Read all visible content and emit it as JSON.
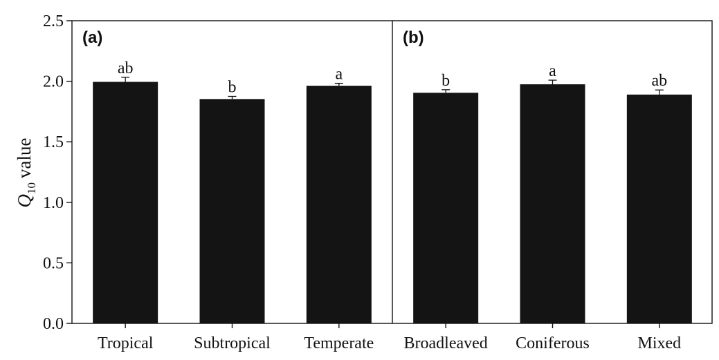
{
  "chart_data": {
    "type": "bar",
    "title": "",
    "xlabel": "",
    "ylabel": {
      "symbol": "Q",
      "subscript": "10",
      "suffix": "value"
    },
    "ylim": [
      0.0,
      2.5
    ],
    "yticks": [
      {
        "value": 0.0,
        "label": "0.0"
      },
      {
        "value": 0.5,
        "label": "0.5"
      },
      {
        "value": 1.0,
        "label": "1.0"
      },
      {
        "value": 1.5,
        "label": "1.5"
      },
      {
        "value": 2.0,
        "label": "2.0"
      },
      {
        "value": 2.5,
        "label": "2.5"
      }
    ],
    "bar_color": "#141414",
    "grid": false,
    "panels": [
      {
        "label": "(a)",
        "categories": [
          "Tropical",
          "Subtropical",
          "Temperate"
        ],
        "values": [
          1.995,
          1.853,
          1.963
        ],
        "errors": [
          0.038,
          0.022,
          0.02
        ],
        "letters": [
          "ab",
          "b",
          "a"
        ]
      },
      {
        "label": "(b)",
        "categories": [
          "Broadleaved",
          "Coniferous",
          "Mixed"
        ],
        "values": [
          1.905,
          1.975,
          1.89
        ],
        "errors": [
          0.025,
          0.034,
          0.038
        ],
        "letters": [
          "b",
          "a",
          "ab"
        ]
      }
    ]
  }
}
